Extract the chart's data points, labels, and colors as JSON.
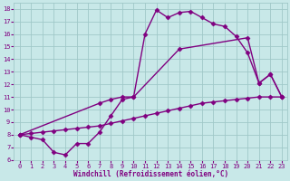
{
  "line1_x": [
    0,
    1,
    2,
    3,
    4,
    5,
    6,
    7,
    8,
    9,
    10,
    11,
    12,
    13,
    14,
    15,
    16,
    17,
    18,
    19,
    20,
    21,
    22,
    23
  ],
  "line1_y": [
    8.0,
    7.8,
    7.6,
    6.6,
    6.4,
    7.3,
    7.3,
    8.2,
    9.5,
    10.8,
    11.0,
    16.0,
    17.9,
    17.3,
    17.7,
    17.8,
    17.3,
    16.8,
    16.6,
    15.8,
    14.5,
    12.1,
    12.8,
    11.0
  ],
  "line2_x": [
    0,
    1,
    2,
    3,
    4,
    5,
    6,
    7,
    8,
    9,
    10,
    11,
    12,
    13,
    14,
    15,
    16,
    17,
    18,
    19,
    20,
    21,
    22,
    23
  ],
  "line2_y": [
    8.0,
    8.1,
    8.2,
    8.3,
    8.4,
    8.5,
    8.6,
    8.7,
    8.9,
    9.1,
    9.3,
    9.5,
    9.7,
    9.9,
    10.1,
    10.3,
    10.5,
    10.6,
    10.7,
    10.8,
    10.9,
    11.0,
    11.0,
    11.0
  ],
  "line3_x": [
    0,
    7,
    8,
    9,
    10,
    14,
    20,
    21,
    22,
    23
  ],
  "line3_y": [
    8.0,
    10.5,
    10.8,
    11.0,
    11.0,
    14.8,
    15.7,
    12.1,
    12.8,
    11.0
  ],
  "color": "#800080",
  "bg_color": "#c8e8e8",
  "grid_color": "#a0c8c8",
  "xlabel": "Windchill (Refroidissement éolien,°C)",
  "xlim": [
    -0.5,
    23.5
  ],
  "ylim": [
    6,
    18.5
  ],
  "xticks": [
    0,
    1,
    2,
    3,
    4,
    5,
    6,
    7,
    8,
    9,
    10,
    11,
    12,
    13,
    14,
    15,
    16,
    17,
    18,
    19,
    20,
    21,
    22,
    23
  ],
  "yticks": [
    6,
    7,
    8,
    9,
    10,
    11,
    12,
    13,
    14,
    15,
    16,
    17,
    18
  ],
  "marker": "D",
  "markersize": 2.5,
  "linewidth": 1.0
}
